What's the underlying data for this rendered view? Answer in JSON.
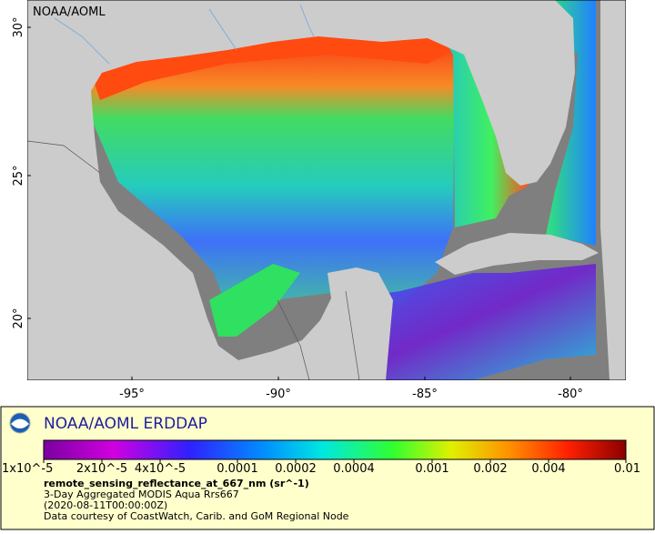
{
  "map": {
    "corner_label": "NOAA/AOML",
    "lat_labels": [
      "30°",
      "25°",
      "20°"
    ],
    "lon_labels": [
      "-95°",
      "-90°",
      "-85°",
      "-80°"
    ]
  },
  "legend": {
    "title": "NOAA/AOML ERDDAP",
    "colorbar_ticks": [
      "1x10^-5",
      "2x10^-5",
      "4x10^-5",
      "0.0001",
      "0.0002",
      "0.0004",
      "0.001",
      "0.002",
      "0.004",
      "0.01"
    ],
    "variable": "remote_sensing_reflectance_at_667_nm (sr^-1)",
    "lines": [
      "3-Day Aggregated MODIS Aqua Rrs667",
      "(2020-08-11T00:00:00Z)",
      "Data courtesy of CoastWatch, Carib. and GoM Regional Node"
    ]
  }
}
